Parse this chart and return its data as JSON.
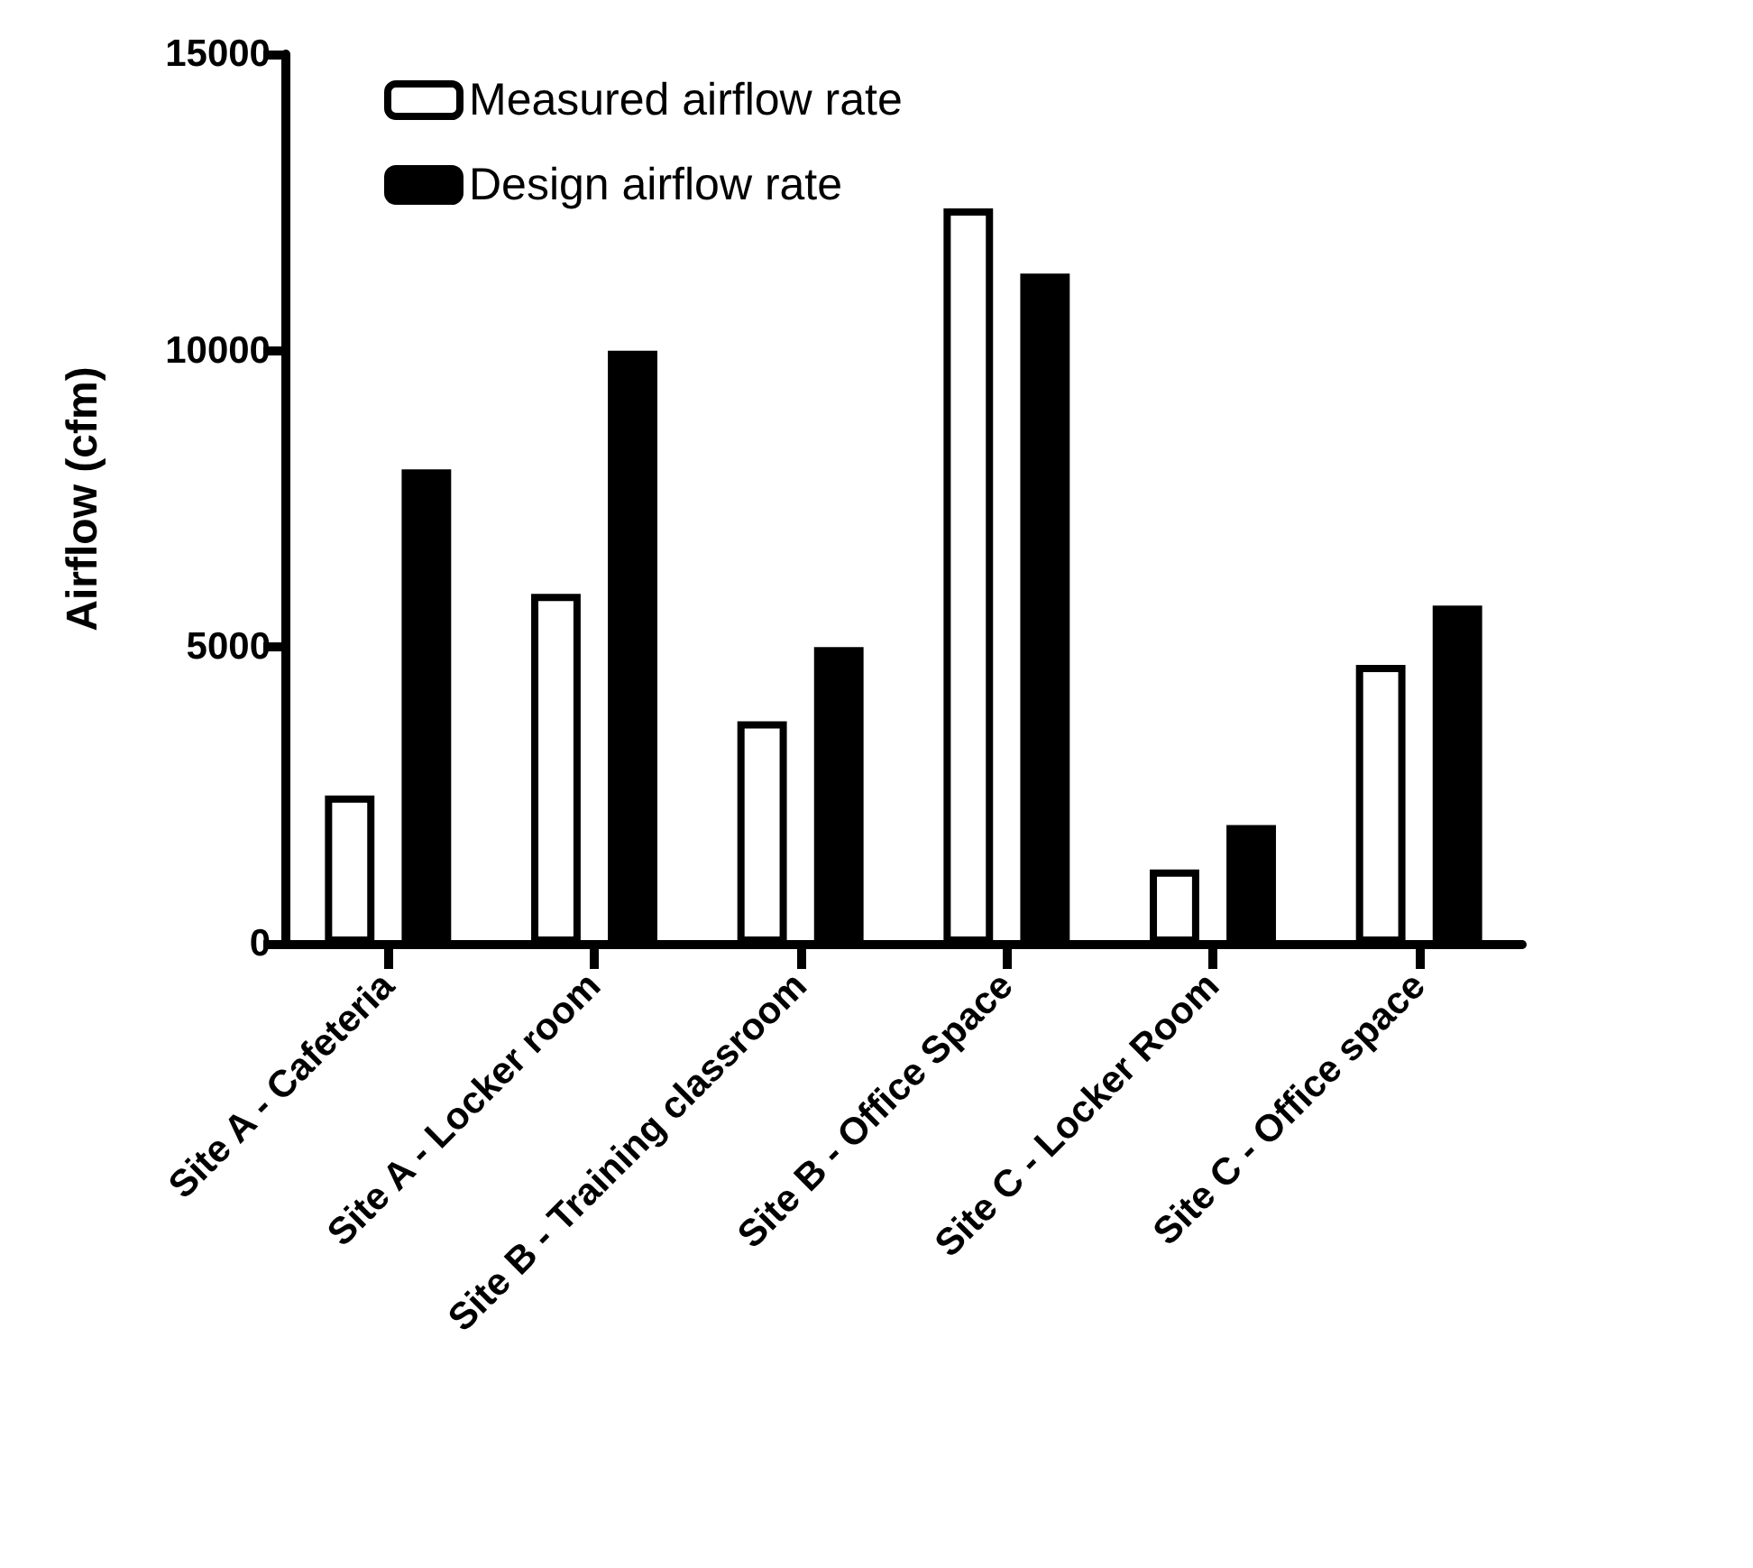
{
  "chart_data": {
    "type": "bar",
    "ylabel": "Airflow (cfm)",
    "categories": [
      "Site A - Cafeteria",
      "Site A - Locker room",
      "Site B - Training classroom",
      "Site B - Office Space",
      "Site C - Locker Room",
      "Site C - Office space"
    ],
    "series": [
      {
        "name": "Measured airflow rate",
        "color": "#ffffff",
        "values": [
          2500,
          5900,
          3750,
          12400,
          1250,
          4700
        ]
      },
      {
        "name": "Design airflow rate",
        "color": "#000000",
        "values": [
          8000,
          10000,
          5000,
          11300,
          2000,
          5700
        ]
      }
    ],
    "ylim": [
      0,
      15000
    ],
    "yticks": [
      0,
      5000,
      10000,
      15000
    ],
    "grid": false,
    "legend": "top left"
  }
}
